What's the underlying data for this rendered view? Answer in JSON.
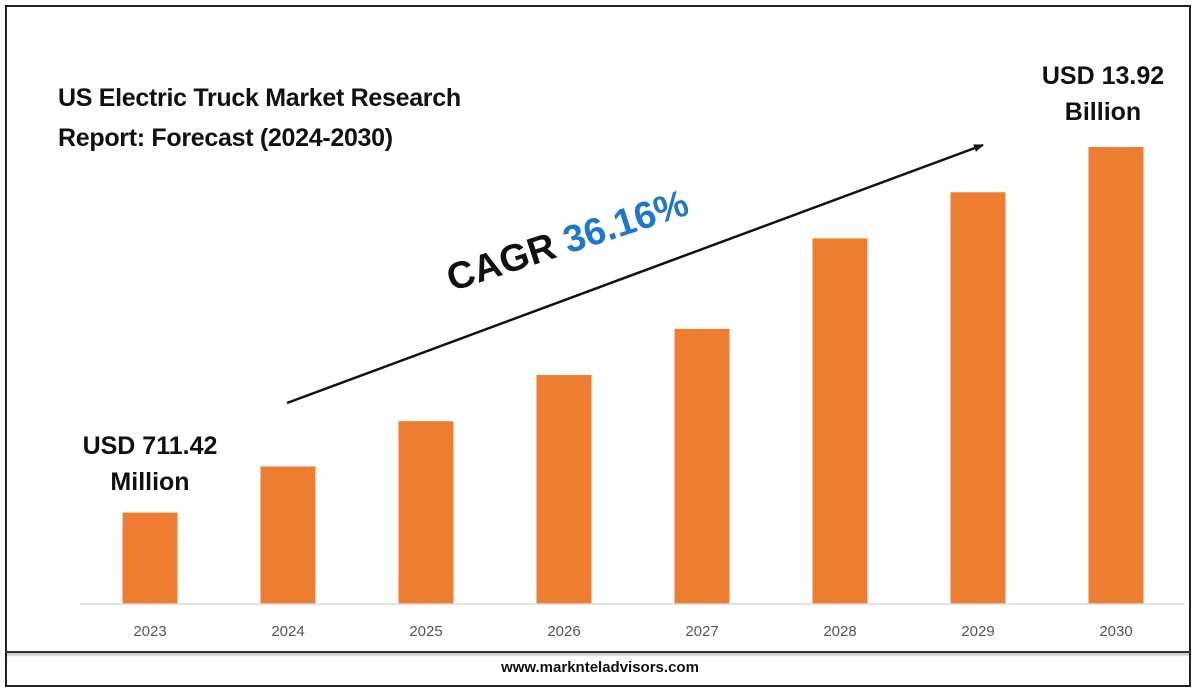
{
  "chart_data": {
    "type": "bar",
    "title_lines": [
      "US Electric Truck Market Research",
      "Report: Forecast (2024-2030)"
    ],
    "categories": [
      "2023",
      "2024",
      "2025",
      "2026",
      "2027",
      "2028",
      "2029",
      "2030"
    ],
    "values": [
      1.01,
      1.52,
      2.02,
      2.53,
      3.04,
      4.04,
      4.55,
      5.05
    ],
    "bar_color": "#ED7D31",
    "axis_color": "#d9d9d9",
    "start_callout": [
      "USD 711.42",
      "Million"
    ],
    "end_callout": [
      "USD 13.92",
      "Billion"
    ],
    "cagr_label": "CAGR",
    "cagr_value": "36.16%",
    "cagr_color": "#1f77c9",
    "grid": false,
    "legend": false
  },
  "footer": {
    "website": "www.marknteladvisors.com"
  }
}
